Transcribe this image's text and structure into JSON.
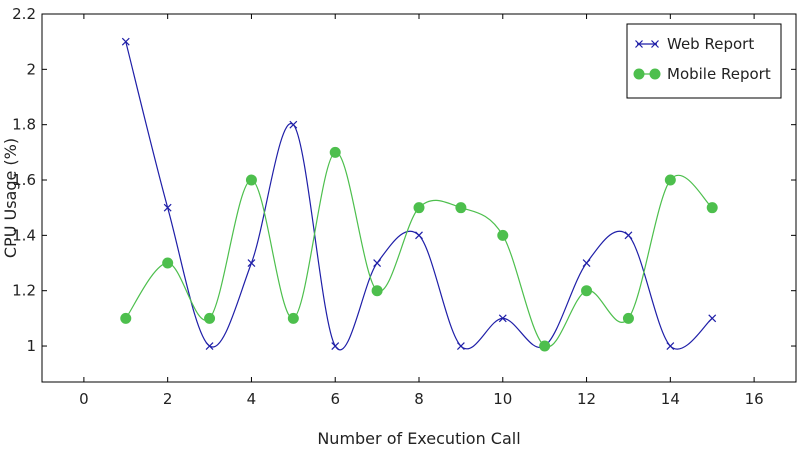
{
  "chart_data": {
    "type": "line",
    "title": "",
    "xlabel": "Number of Execution Call",
    "ylabel": "CPU Usage (%)",
    "xlim": [
      -1,
      17
    ],
    "ylim": [
      0.87,
      2.2
    ],
    "xticks": [
      "0",
      "2",
      "4",
      "6",
      "8",
      "10",
      "12",
      "14",
      "16"
    ],
    "yticks": [
      "1",
      "1.2",
      "1.4",
      "1.6",
      "1.8",
      "2",
      "2.2"
    ],
    "grid": false,
    "legend": "top-right",
    "x": [
      1,
      2,
      3,
      4,
      5,
      6,
      7,
      8,
      9,
      10,
      11,
      12,
      13,
      14,
      15
    ],
    "series": [
      {
        "name": "Web Report",
        "color": "#1f1fa8",
        "marker": "x",
        "values": [
          2.1,
          1.5,
          1.0,
          1.3,
          1.8,
          1.0,
          1.3,
          1.4,
          1.0,
          1.1,
          1.0,
          1.3,
          1.4,
          1.0,
          1.1
        ]
      },
      {
        "name": "Mobile Report",
        "color": "#4dbf4d",
        "marker": "circle",
        "values": [
          1.1,
          1.3,
          1.1,
          1.6,
          1.1,
          1.7,
          1.2,
          1.5,
          1.5,
          1.4,
          1.0,
          1.2,
          1.1,
          1.6,
          1.5
        ]
      }
    ]
  }
}
